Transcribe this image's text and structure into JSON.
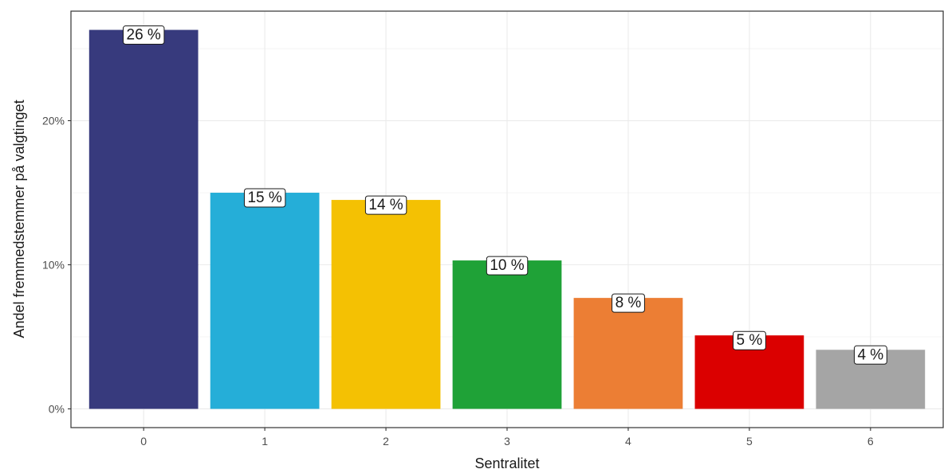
{
  "chart_data": {
    "type": "bar",
    "categories": [
      "0",
      "1",
      "2",
      "3",
      "4",
      "5",
      "6"
    ],
    "values": [
      26.3,
      15.0,
      14.5,
      10.3,
      7.7,
      5.1,
      4.1
    ],
    "data_labels": [
      "26 %",
      "15 %",
      "14 %",
      "10 %",
      "8 %",
      "5 %",
      "4 %"
    ],
    "colors": [
      "#373A7D",
      "#25AED8",
      "#F4C103",
      "#1FA237",
      "#EC7E34",
      "#DB0000",
      "#A5A5A5"
    ],
    "xlabel": "Sentralitet",
    "ylabel": "Andel fremmedstemmer på valgtinget",
    "yticks": [
      0,
      10,
      20
    ],
    "ytick_labels": [
      "0%",
      "10%",
      "20%"
    ],
    "ylim": [
      -1.3,
      27.6
    ],
    "grid": true
  }
}
